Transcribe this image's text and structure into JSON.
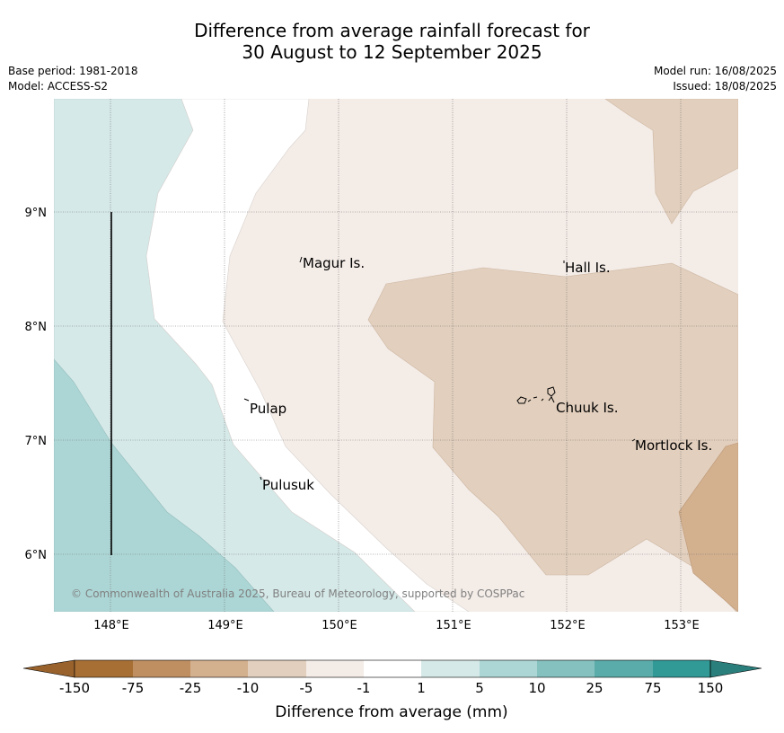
{
  "title_line1": "Difference from average rainfall forecast for",
  "title_line2": "30 August to 12 September 2025",
  "base_period": "Base period: 1981-2018",
  "model": "Model: ACCESS-S2",
  "model_run": "Model run: 16/08/2025",
  "issued": "Issued: 18/08/2025",
  "map": {
    "lon_ticks": [
      "148°E",
      "149°E",
      "150°E",
      "151°E",
      "152°E",
      "153°E"
    ],
    "lat_ticks": [
      "9°N",
      "8°N",
      "7°N",
      "6°N"
    ],
    "places": [
      {
        "name": "Magur Is."
      },
      {
        "name": "Hall Is."
      },
      {
        "name": "Pulap"
      },
      {
        "name": "Chuuk Is."
      },
      {
        "name": "Mortlock Is."
      },
      {
        "name": "Pulusuk"
      }
    ],
    "copyright": "© Commonwealth of Australia 2025, Bureau of Meteorology, supported by COSPPac"
  },
  "legend": {
    "labels": [
      "-150",
      "-75",
      "-25",
      "-10",
      "-5",
      "-1",
      "1",
      "5",
      "10",
      "25",
      "75",
      "150"
    ],
    "colors": [
      "#a86f34",
      "#bf8f61",
      "#d3b08e",
      "#e2cfbd",
      "#f4ece7",
      "#ffffff",
      "#d5e9e8",
      "#acd6d5",
      "#85c1bf",
      "#5aacaa",
      "#319996"
    ],
    "under_color": "#99622c",
    "over_color": "#2a7f7c",
    "title": "Difference from average (mm)"
  }
}
